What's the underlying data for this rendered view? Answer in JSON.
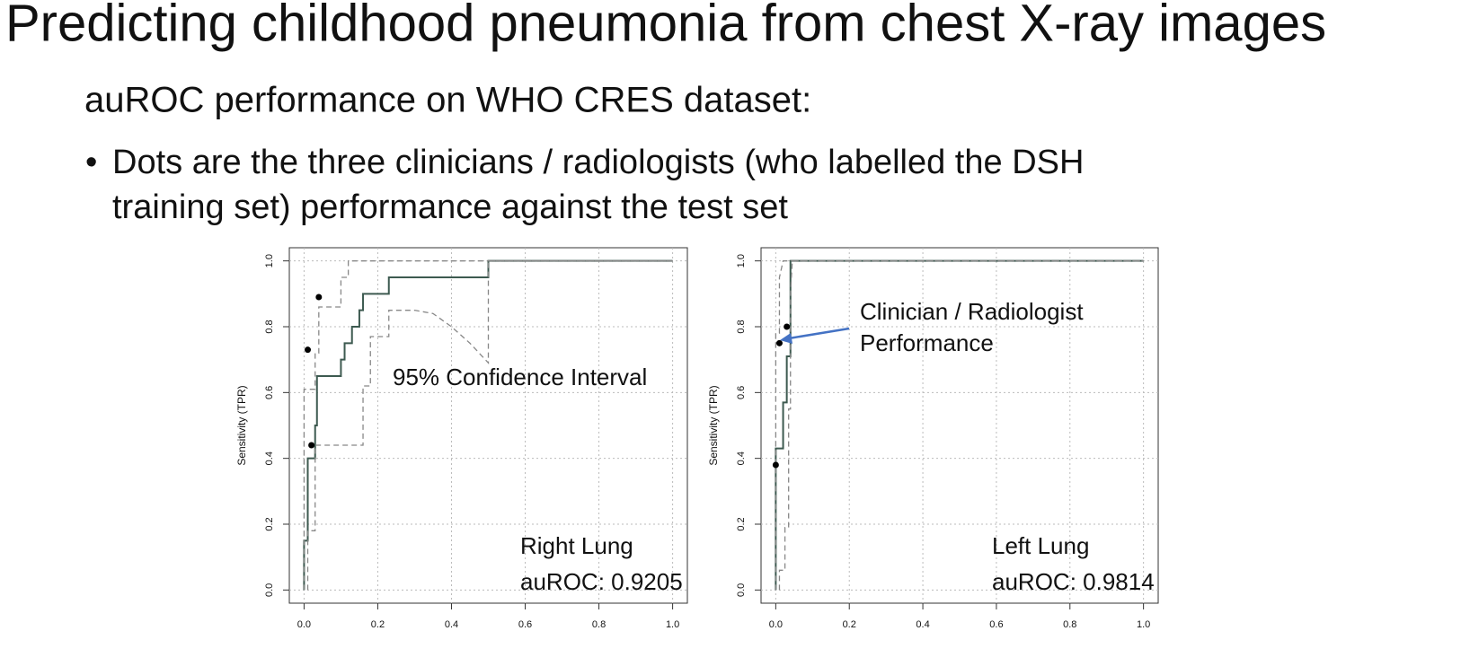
{
  "title": "Predicting childhood pneumonia from chest X-ray images",
  "subtitle": "auROC performance on WHO CRES dataset:",
  "bullet": [
    "Dots are the three clinicians / radiologists (who labelled the DSH",
    "training set) performance against the test set"
  ],
  "chart_data": [
    {
      "type": "line",
      "ylabel": "Sensitivity (TPR)",
      "grid": true,
      "xlim": [
        -0.04,
        1.04
      ],
      "ylim": [
        -0.04,
        1.04
      ],
      "xticks": [
        {
          "value": 0,
          "label": "0.0"
        },
        0.2,
        0.4,
        0.6,
        0.8,
        {
          "value": 1,
          "label": "1.0"
        }
      ],
      "yticks": [
        {
          "value": 0,
          "label": "0.0"
        },
        0.2,
        0.4,
        0.6,
        0.8,
        {
          "value": 1,
          "label": "1.0"
        }
      ],
      "series": [
        {
          "color": "#3d5a50",
          "dashed": false,
          "x": [
            0,
            0,
            0.01,
            0.01,
            0.03,
            0.03,
            0.035,
            0.035,
            0.1,
            0.1,
            0.11,
            0.11,
            0.13,
            0.13,
            0.15,
            0.15,
            0.16,
            0.16,
            0.23,
            0.23,
            0.5,
            0.5,
            1
          ],
          "values": [
            0,
            0.15,
            0.15,
            0.4,
            0.4,
            0.5,
            0.5,
            0.65,
            0.65,
            0.7,
            0.7,
            0.75,
            0.75,
            0.8,
            0.8,
            0.85,
            0.85,
            0.9,
            0.9,
            0.95,
            0.95,
            1,
            1
          ]
        },
        {
          "color": "#888888",
          "dashed": true,
          "x": [
            0,
            0,
            0.03,
            0.03,
            0.04,
            0.04,
            0.1,
            0.1,
            0.12,
            0.12,
            0.155,
            1
          ],
          "values": [
            0,
            0.61,
            0.61,
            0.72,
            0.72,
            0.86,
            0.86,
            0.95,
            0.95,
            1,
            1,
            1
          ]
        },
        {
          "color": "#888888",
          "dashed": true,
          "x": [
            0.01,
            0.01,
            0.03,
            0.03,
            0.16,
            0.16,
            0.18,
            0.18,
            0.23,
            0.23,
            0.3,
            0.35,
            0.4,
            0.45,
            0.5,
            0.5,
            1
          ],
          "values": [
            0,
            0.18,
            0.18,
            0.44,
            0.44,
            0.62,
            0.62,
            0.77,
            0.77,
            0.85,
            0.85,
            0.84,
            0.8,
            0.75,
            0.69,
            1,
            1
          ]
        }
      ],
      "points": {
        "color": "#000000",
        "x": [
          0.01,
          0.04,
          0.02
        ],
        "values": [
          0.73,
          0.89,
          0.44
        ]
      },
      "annotations": [
        [
          "95% Confidence Interval"
        ],
        [
          "Right Lung",
          "auROC: 0.9205"
        ]
      ]
    },
    {
      "type": "line",
      "ylabel": "Sensitivity (TPR)",
      "grid": true,
      "xlim": [
        -0.04,
        1.04
      ],
      "ylim": [
        -0.04,
        1.04
      ],
      "xticks": [
        {
          "value": 0,
          "label": "0.0"
        },
        0.2,
        0.4,
        0.6,
        0.8,
        {
          "value": 1,
          "label": "1.0"
        }
      ],
      "yticks": [
        {
          "value": 0,
          "label": "0.0"
        },
        0.2,
        0.4,
        0.6,
        0.8,
        {
          "value": 1,
          "label": "1.0"
        }
      ],
      "series": [
        {
          "color": "#3d5a50",
          "dashed": false,
          "x": [
            0,
            0,
            0.02,
            0.02,
            0.03,
            0.03,
            0.04,
            0.04,
            1
          ],
          "values": [
            0,
            0.43,
            0.43,
            0.57,
            0.57,
            0.71,
            0.71,
            1,
            1
          ]
        },
        {
          "color": "#888888",
          "dashed": true,
          "x": [
            0,
            0,
            0.01,
            0.01,
            0.02,
            1
          ],
          "values": [
            0,
            0.78,
            0.78,
            0.95,
            1,
            1
          ]
        },
        {
          "color": "#888888",
          "dashed": true,
          "x": [
            0.01,
            0.01,
            0.025,
            0.025,
            0.035,
            0.035,
            0.04,
            0.04,
            0.045,
            1
          ],
          "values": [
            0,
            0.06,
            0.06,
            0.19,
            0.19,
            0.55,
            0.55,
            0.9,
            1,
            1
          ]
        }
      ],
      "points": {
        "color": "#000000",
        "x": [
          0,
          0.01,
          0.03
        ],
        "values": [
          0.38,
          0.75,
          0.8
        ]
      },
      "annotations": [
        [
          "Clinician / Radiologist",
          "Performance"
        ],
        [
          "Left Lung",
          "auROC: 0.9814"
        ]
      ]
    }
  ]
}
